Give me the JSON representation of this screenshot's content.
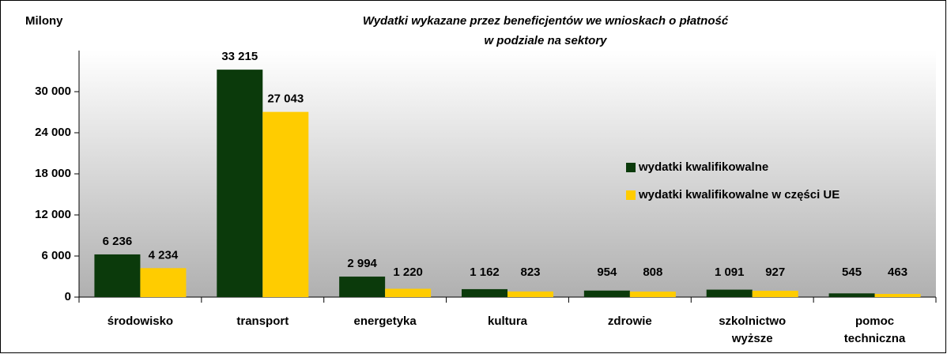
{
  "chart_data": {
    "type": "bar",
    "title": [
      "Wydatki wykazane przez beneficjentów we wnioskach o płatność",
      "w podziale na sektory"
    ],
    "y_label": "Milony",
    "categories": [
      "środowisko",
      "transport",
      "energetyka",
      "kultura",
      "zdrowie",
      "szkolnictwo wyższe",
      "pomoc techniczna"
    ],
    "series": [
      {
        "name": "wydatki kwalifikowalne",
        "color": "#0b3a0b",
        "values": [
          6236,
          33215,
          2994,
          1162,
          954,
          1091,
          545
        ],
        "value_labels": [
          "6 236",
          "33 215",
          "2 994",
          "1 162",
          "954",
          "1 091",
          "545"
        ]
      },
      {
        "name": "wydatki kwalifikowalne w części UE",
        "color": "#ffcc00",
        "values": [
          4234,
          27043,
          1220,
          823,
          808,
          927,
          463
        ],
        "value_labels": [
          "4 234",
          "27 043",
          "1 220",
          "823",
          "808",
          "927",
          "463"
        ]
      }
    ],
    "ylim": [
      0,
      36000
    ],
    "yticks": [
      0,
      {
        "value": 6000,
        "label": "6 000"
      },
      {
        "value": 12000,
        "label": "12 000"
      },
      {
        "value": 18000,
        "label": "18 000"
      },
      {
        "value": 24000,
        "label": "24 000"
      },
      {
        "value": 30000,
        "label": "30 000"
      }
    ],
    "legend": "right"
  }
}
